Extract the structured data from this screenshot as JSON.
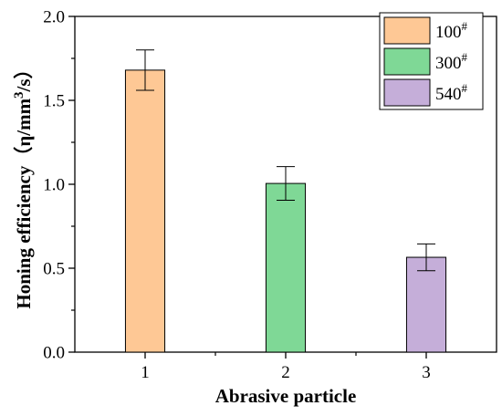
{
  "chart_data": {
    "type": "bar",
    "categories": [
      "1",
      "2",
      "3"
    ],
    "x": [
      1,
      2,
      3
    ],
    "values": [
      1.68,
      1.005,
      0.565
    ],
    "errors": [
      0.12,
      0.1,
      0.08
    ],
    "series": [
      {
        "name": "100",
        "sup": "#",
        "x": 1,
        "value": 1.68,
        "error": 0.12,
        "color": "#fec895"
      },
      {
        "name": "300",
        "sup": "#",
        "x": 2,
        "value": 1.005,
        "error": 0.1,
        "color": "#7fd896"
      },
      {
        "name": "540",
        "sup": "#",
        "x": 3,
        "value": 0.565,
        "error": 0.08,
        "color": "#c5aed9"
      }
    ],
    "title": "",
    "xlabel": "Abrasive particle",
    "ylabel": "Honing efficiency（η/mm",
    "ylabel_sup": "3",
    "ylabel_tail": "/s）",
    "xlim": [
      0.5,
      3.5
    ],
    "ylim": [
      0,
      2.0
    ],
    "yticks": [
      "0.0",
      "0.5",
      "1.0",
      "1.5",
      "2.0"
    ],
    "grid": false,
    "legend_position": "top-right"
  }
}
